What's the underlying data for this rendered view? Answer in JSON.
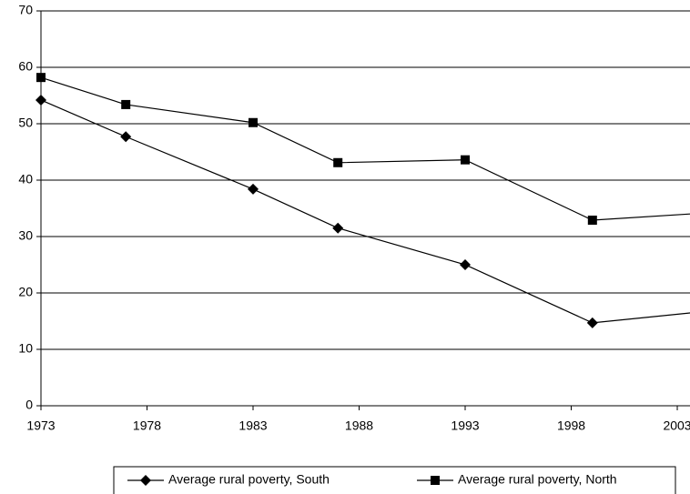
{
  "chart_data": {
    "type": "line",
    "x": [
      1973,
      1977,
      1983,
      1987,
      1993,
      1999,
      2004
    ],
    "series": [
      {
        "name": "Average rural poverty, South",
        "color": "#000000",
        "marker": "diamond",
        "values": [
          54.2,
          47.7,
          38.4,
          31.5,
          25.0,
          14.7,
          16.6
        ]
      },
      {
        "name": "Average rural poverty, North",
        "color": "#000000",
        "marker": "square",
        "values": [
          58.2,
          53.4,
          50.2,
          43.1,
          43.6,
          32.9,
          34.1
        ]
      }
    ],
    "xlim": [
      1973,
      2003.6
    ],
    "xticks": [
      1973,
      1978,
      1983,
      1988,
      1993,
      1998,
      2003
    ],
    "ylim": [
      0,
      70
    ],
    "yticks": [
      0,
      10,
      20,
      30,
      40,
      50,
      60,
      70
    ],
    "grid": true,
    "legend": "bottom"
  }
}
